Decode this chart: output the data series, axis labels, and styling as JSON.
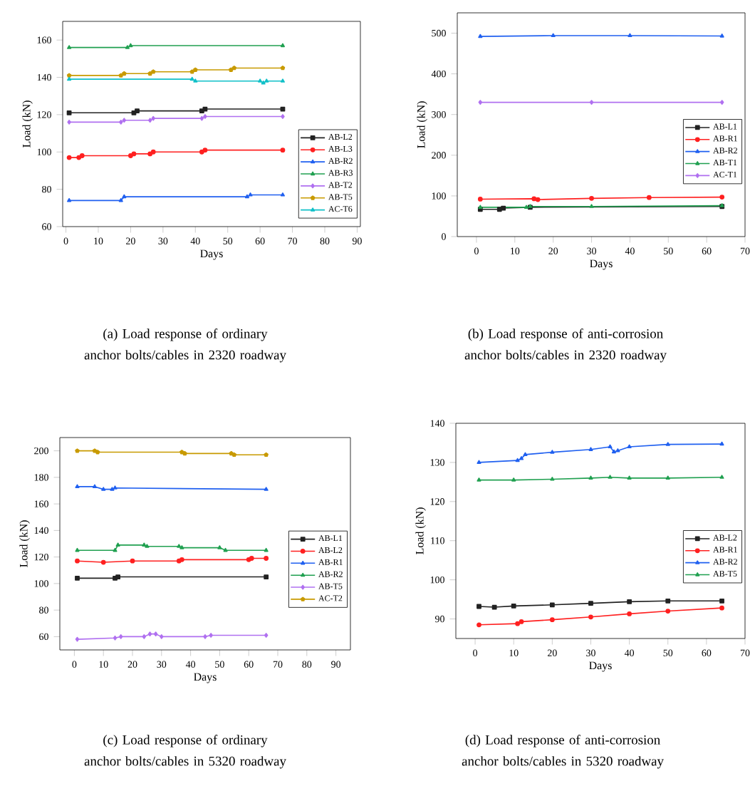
{
  "chart_data": [
    {
      "type": "line",
      "title": "(a) Load response of ordinary anchor bolts/cables in 2320 roadway",
      "xlabel": "Days",
      "ylabel": "Load (kN)",
      "xlim": [
        -1,
        91
      ],
      "xticks": [
        0,
        10,
        20,
        30,
        40,
        50,
        60,
        70,
        80,
        90
      ],
      "ylim": [
        60,
        170
      ],
      "yticks": [
        60,
        80,
        100,
        120,
        140,
        160
      ],
      "legend": "bottom right",
      "series": [
        {
          "name": "AB-L2",
          "color": "#222222",
          "marker": "square",
          "x": [
            1,
            21,
            22,
            42,
            43,
            67
          ],
          "values": [
            121,
            121,
            122,
            122,
            123,
            123
          ]
        },
        {
          "name": "AB-L3",
          "color": "#ff2020",
          "marker": "circle",
          "x": [
            1,
            4,
            5,
            20,
            21,
            26,
            27,
            42,
            43,
            67
          ],
          "values": [
            97,
            97,
            98,
            98,
            99,
            99,
            100,
            100,
            101,
            101
          ]
        },
        {
          "name": "AB-R2",
          "color": "#2060f0",
          "marker": "triangle",
          "x": [
            1,
            17,
            18,
            56,
            57,
            67
          ],
          "values": [
            74,
            74,
            76,
            76,
            77,
            77
          ]
        },
        {
          "name": "AB-R3",
          "color": "#20a050",
          "marker": "triangle",
          "x": [
            1,
            19,
            20,
            67
          ],
          "values": [
            156,
            156,
            157,
            157
          ]
        },
        {
          "name": "AB-T2",
          "color": "#b070f0",
          "marker": "diamond",
          "x": [
            1,
            17,
            18,
            26,
            27,
            42,
            43,
            67
          ],
          "values": [
            116,
            116,
            117,
            117,
            118,
            118,
            119,
            119
          ]
        },
        {
          "name": "AB-T5",
          "color": "#c89a00",
          "marker": "star",
          "x": [
            1,
            17,
            18,
            26,
            27,
            39,
            40,
            51,
            52,
            67
          ],
          "values": [
            141,
            141,
            142,
            142,
            143,
            143,
            144,
            144,
            145,
            145
          ]
        },
        {
          "name": "AC-T6",
          "color": "#10c0c8",
          "marker": "triangle",
          "x": [
            1,
            39,
            40,
            60,
            61,
            62,
            67
          ],
          "values": [
            139,
            139,
            138,
            138,
            137,
            138,
            138
          ]
        }
      ]
    },
    {
      "type": "line",
      "title": "(b) Load response of anti-corrosion anchor bolts/cables in 2320 roadway",
      "xlabel": "Days",
      "ylabel": "Load (kN)",
      "xlim": [
        -5,
        70
      ],
      "xticks": [
        0,
        10,
        20,
        30,
        40,
        50,
        60,
        70
      ],
      "ylim": [
        0,
        550
      ],
      "yticks": [
        0,
        100,
        200,
        300,
        400,
        500
      ],
      "legend": "right",
      "series": [
        {
          "name": "AB-L1",
          "color": "#222222",
          "marker": "square",
          "x": [
            1,
            6,
            7,
            13,
            14,
            64
          ],
          "values": [
            67,
            67,
            70,
            null,
            72,
            74
          ]
        },
        {
          "name": "AB-R1",
          "color": "#ff2020",
          "marker": "circle",
          "x": [
            1,
            15,
            16,
            30,
            45,
            64
          ],
          "values": [
            92,
            93,
            91,
            94,
            96,
            97
          ]
        },
        {
          "name": "AB-R2",
          "color": "#2060f0",
          "marker": "triangle",
          "x": [
            1,
            20,
            40,
            64
          ],
          "values": [
            492,
            494,
            494,
            493
          ]
        },
        {
          "name": "AB-T1",
          "color": "#20a050",
          "marker": "triangle",
          "x": [
            1,
            13,
            14,
            30,
            64
          ],
          "values": [
            72,
            72,
            74,
            74,
            76
          ]
        },
        {
          "name": "AC-T1",
          "color": "#b070f0",
          "marker": "diamond",
          "x": [
            1,
            30,
            64
          ],
          "values": [
            330,
            330,
            330
          ]
        }
      ]
    },
    {
      "type": "line",
      "title": "(c) Load response of ordinary anchor bolts/cables in 5320 roadway",
      "xlabel": "Days",
      "ylabel": "Load (kN)",
      "xlim": [
        -5,
        95
      ],
      "xticks": [
        0,
        10,
        20,
        30,
        40,
        50,
        60,
        70,
        80,
        90
      ],
      "ylim": [
        50,
        210
      ],
      "yticks": [
        60,
        80,
        100,
        120,
        140,
        160,
        180,
        200
      ],
      "legend": "right",
      "series": [
        {
          "name": "AB-L1",
          "color": "#222222",
          "marker": "square",
          "x": [
            1,
            14,
            15,
            66
          ],
          "values": [
            104,
            104,
            105,
            105
          ]
        },
        {
          "name": "AB-L2",
          "color": "#ff2020",
          "marker": "circle",
          "x": [
            1,
            10,
            20,
            36,
            37,
            60,
            61,
            66
          ],
          "values": [
            117,
            116,
            117,
            117,
            118,
            118,
            119,
            119
          ]
        },
        {
          "name": "AB-R1",
          "color": "#2060f0",
          "marker": "triangle",
          "x": [
            1,
            7,
            10,
            13,
            14,
            66
          ],
          "values": [
            173,
            173,
            171,
            171,
            172,
            171
          ]
        },
        {
          "name": "AB-R2",
          "color": "#20a050",
          "marker": "triangle",
          "x": [
            1,
            14,
            15,
            24,
            25,
            36,
            37,
            50,
            52,
            66
          ],
          "values": [
            125,
            125,
            129,
            129,
            128,
            128,
            127,
            127,
            125,
            125
          ]
        },
        {
          "name": "AB-T5",
          "color": "#b070f0",
          "marker": "diamond",
          "x": [
            1,
            14,
            16,
            24,
            26,
            28,
            30,
            45,
            47,
            66
          ],
          "values": [
            58,
            59,
            60,
            60,
            62,
            62,
            60,
            60,
            61,
            61
          ]
        },
        {
          "name": "AC-T2",
          "color": "#c89a00",
          "marker": "star",
          "x": [
            1,
            7,
            8,
            37,
            38,
            54,
            55,
            66
          ],
          "values": [
            200,
            200,
            199,
            199,
            198,
            198,
            197,
            197
          ]
        }
      ]
    },
    {
      "type": "line",
      "title": "(d) Load response of anti-corrosion anchor bolts/cables in 5320 roadway",
      "xlabel": "Days",
      "ylabel": "Load (kN)",
      "xlim": [
        -5,
        70
      ],
      "xticks": [
        0,
        10,
        20,
        30,
        40,
        50,
        60,
        70
      ],
      "ylim": [
        85,
        140
      ],
      "yticks": [
        90,
        100,
        110,
        120,
        130,
        140
      ],
      "legend": "right",
      "series": [
        {
          "name": "AB-L2",
          "color": "#222222",
          "marker": "square",
          "x": [
            1,
            5,
            10,
            20,
            30,
            40,
            50,
            64
          ],
          "values": [
            93.2,
            93.0,
            93.3,
            93.6,
            94.0,
            94.4,
            94.6,
            94.6
          ]
        },
        {
          "name": "AB-R1",
          "color": "#ff2020",
          "marker": "circle",
          "x": [
            1,
            11,
            12,
            20,
            30,
            40,
            50,
            64
          ],
          "values": [
            88.5,
            88.8,
            89.3,
            89.8,
            90.5,
            91.3,
            92.0,
            92.8
          ]
        },
        {
          "name": "AB-R2",
          "color": "#2060f0",
          "marker": "triangle",
          "x": [
            1,
            11,
            12,
            13,
            20,
            30,
            35,
            36,
            37,
            40,
            50,
            64
          ],
          "values": [
            130,
            130.5,
            131,
            132,
            132.6,
            133.3,
            134,
            132.7,
            133,
            134,
            134.6,
            134.7
          ]
        },
        {
          "name": "AB-T5",
          "color": "#20a050",
          "marker": "triangle",
          "x": [
            1,
            10,
            20,
            30,
            35,
            40,
            50,
            64
          ],
          "values": [
            125.5,
            125.5,
            125.7,
            126,
            126.2,
            126,
            126,
            126.2
          ]
        }
      ]
    }
  ]
}
